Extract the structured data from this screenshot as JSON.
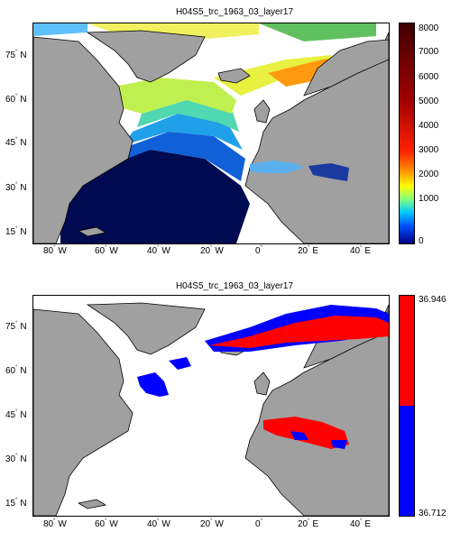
{
  "panels": [
    {
      "title": "H04S5_trc_1963_03_layer17",
      "colorbar": {
        "type": "continuous",
        "ticks": [
          "8000",
          "7000",
          "6000",
          "5000",
          "4000",
          "3000",
          "2000",
          "1000",
          "0"
        ]
      }
    },
    {
      "title": "H04S5_trc_1963_03_layer17",
      "colorbar": {
        "type": "binary",
        "max_label": "36.946",
        "min_label": "36.712",
        "colors": [
          "#ff0000",
          "#0000ff"
        ]
      }
    }
  ],
  "axes": {
    "lat_ticks": [
      "75",
      "60",
      "45",
      "30",
      "15"
    ],
    "lat_hemi": "N",
    "lon_ticks": [
      {
        "deg": "80",
        "hemi": "W"
      },
      {
        "deg": "60",
        "hemi": "W"
      },
      {
        "deg": "40",
        "hemi": "W"
      },
      {
        "deg": "20",
        "hemi": "W"
      },
      {
        "deg": "0",
        "hemi": ""
      },
      {
        "deg": "20",
        "hemi": "E"
      },
      {
        "deg": "40",
        "hemi": "E"
      }
    ]
  },
  "colors": {
    "land": "#a0a0a0",
    "ocean_no_data": "#ffffff",
    "continuous_scale": [
      "#000080",
      "#0060ff",
      "#00c0ff",
      "#60ffa0",
      "#e0ff40",
      "#ffa000",
      "#ff3000",
      "#a00000",
      "#400000"
    ]
  }
}
